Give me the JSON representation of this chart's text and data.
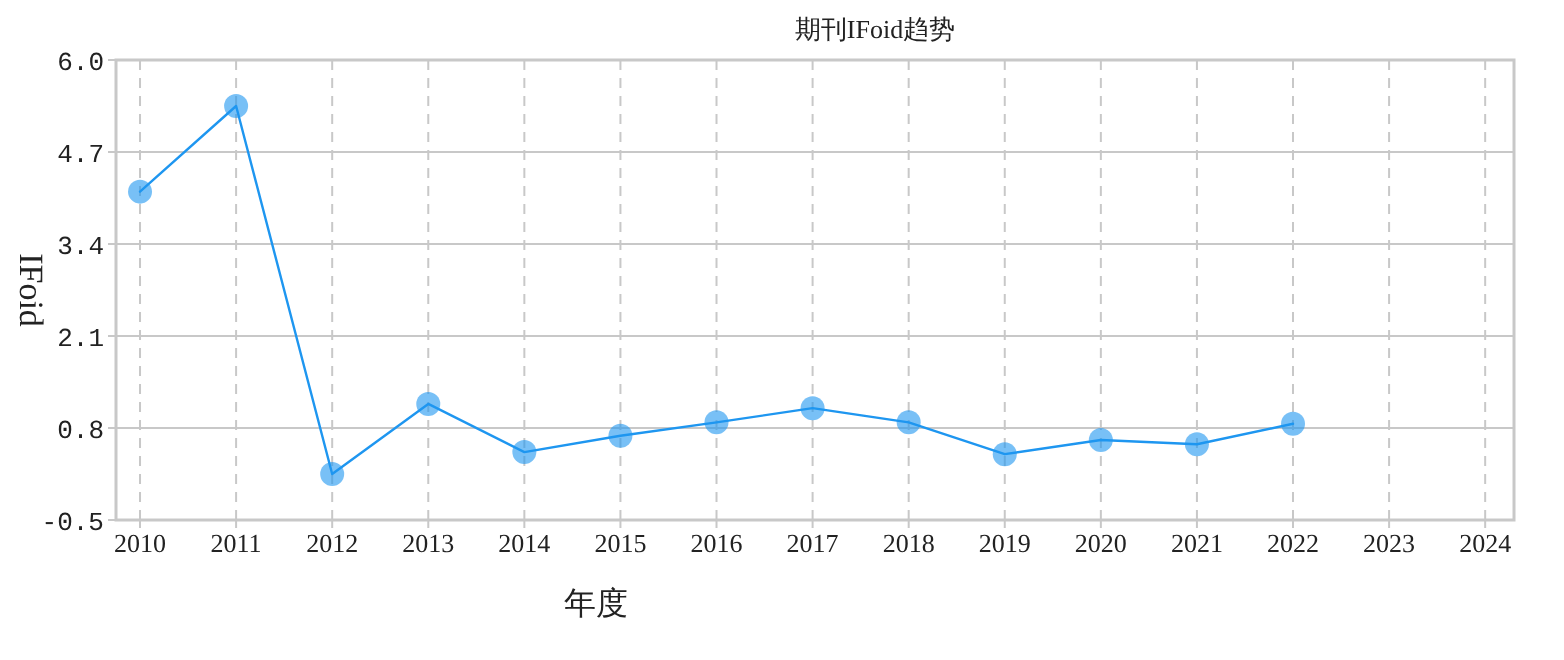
{
  "chart_data": {
    "type": "line",
    "title": "期刊IFoid趋势",
    "xlabel": "年度",
    "ylabel": "IFoid",
    "categories": [
      "2010",
      "2011",
      "2012",
      "2013",
      "2014",
      "2015",
      "2016",
      "2017",
      "2018",
      "2019",
      "2020",
      "2021",
      "2022",
      "2023",
      "2024"
    ],
    "series": [
      {
        "color": "#1e96f0",
        "values": [
          4.14,
          5.35,
          0.15,
          1.14,
          0.46,
          0.69,
          0.88,
          1.08,
          0.88,
          0.43,
          0.63,
          0.57,
          0.86,
          null,
          null
        ]
      }
    ],
    "ylim": [
      -0.5,
      6.0
    ],
    "yticks": [
      -0.5,
      0.8,
      2.1,
      3.4,
      4.7,
      {
        "value": 6,
        "label": "6.0"
      }
    ],
    "grid": true,
    "marker": "circle",
    "line_style": "solid"
  }
}
